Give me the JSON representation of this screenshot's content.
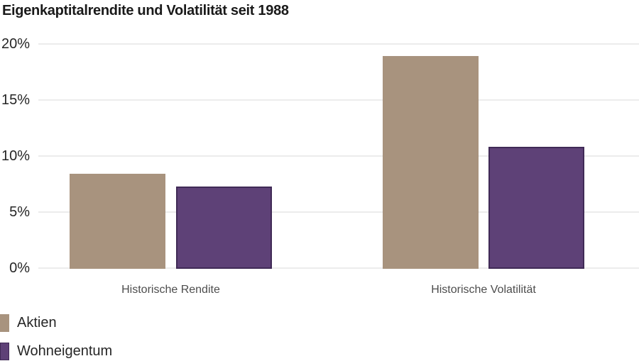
{
  "title": "Eigenkaptitalrendite und Volatilität seit 1988",
  "colors": {
    "background": "#ffffff",
    "title_text": "#1a1a1a",
    "axis_text": "#262626",
    "category_text": "#4d4d4d",
    "gridline": "#ececec",
    "aktien": "#a8937e",
    "wohneigentum": "#5e4177",
    "wohneigentum_border": "#402a56"
  },
  "chart_data": {
    "type": "bar",
    "title": "Eigenkaptitalrendite und Volatilität seit 1988",
    "categories": [
      "Historische Rendite",
      "Historische Volatilität"
    ],
    "series": [
      {
        "name": "Aktien",
        "color": "#a8937e",
        "border_color": "#a8937e",
        "values": [
          8.4,
          18.9
        ]
      },
      {
        "name": "Wohneigentum",
        "color": "#5e4177",
        "border_color": "#402a56",
        "values": [
          7.3,
          10.8
        ]
      }
    ],
    "xlabel": "",
    "ylabel": "",
    "ylim": [
      0,
      20
    ],
    "y_ticks": [
      {
        "label": "0%",
        "value": 0
      },
      {
        "label": "5%",
        "value": 5
      },
      {
        "label": "10%",
        "value": 10
      },
      {
        "label": "15%",
        "value": 15
      },
      {
        "label": "20%",
        "value": 20
      }
    ],
    "grid": "horizontal",
    "gridline_color": "#ececec",
    "legend_position": "bottom-left"
  }
}
